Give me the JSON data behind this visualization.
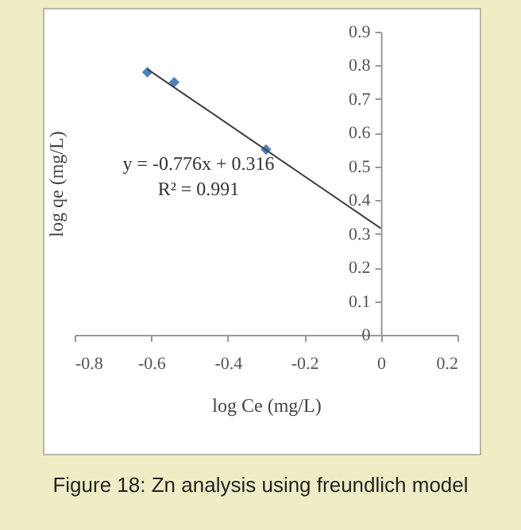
{
  "chart_data": {
    "type": "scatter",
    "xlabel": "log Ce (mg/L)",
    "ylabel": "log qe (mg/L)",
    "xlim": [
      -0.8,
      0.2
    ],
    "xticks": [
      -0.8,
      -0.6,
      -0.4,
      -0.2,
      0,
      0.2
    ],
    "ylim": [
      0,
      0.9
    ],
    "yticks": [
      0,
      0.1,
      0.2,
      0.3,
      0.4,
      0.5,
      0.6,
      0.7,
      0.8,
      0.9
    ],
    "series": [
      {
        "color": "#4f81bd",
        "marker": "diamond",
        "x": [
          -0.61,
          -0.54,
          -0.3
        ],
        "values": [
          0.78,
          0.75,
          0.55
        ]
      },
      {
        "type": "line",
        "color": "#404040",
        "x": [
          -0.61,
          0
        ],
        "values": [
          0.789,
          0.316
        ],
        "line_style": "solid"
      }
    ],
    "annotations": [
      "y = -0.776x + 0.316",
      "R² = 0.991",
      "Figure 18: Zn analysis using freundlich model"
    ]
  }
}
